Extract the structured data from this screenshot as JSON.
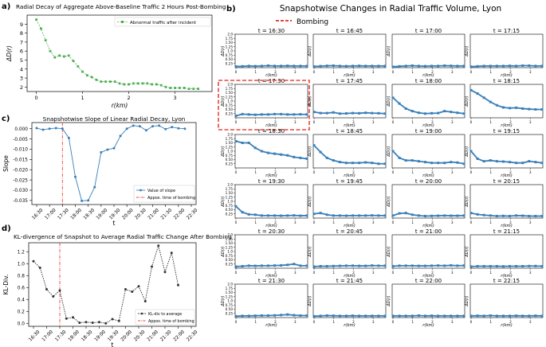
{
  "panels": {
    "a": {
      "letter": "a)",
      "title": "Radial Decay of Aggregate Above-Baseline Traffic 2 Hours Post-Bombing",
      "xlabel": "r(km)",
      "ylabel": "ΔD(r)",
      "legend": "Abnormal traffic after incident",
      "color": "#4caf50"
    },
    "b": {
      "letter": "b)",
      "title": "Snapshotwise Changes in Radial Traffic Volume, Lyon",
      "legend": "Bombing",
      "legend_color": "#e8453c",
      "color": "#3a7fb8",
      "xlabel": "r(km)",
      "ylabel": "ΔD(r)",
      "time_prefix": "t = ",
      "highlight_time": "17:30"
    },
    "c": {
      "letter": "c)",
      "title": "Snapshotwise Slope of Linear Radial Decay, Lyon",
      "xlabel": "t",
      "ylabel": "Slope",
      "legend_series": "Value of slope",
      "legend_bombing": "Appox. time of bombing",
      "color": "#3a7fb8",
      "bombing_color": "#e8453c"
    },
    "d": {
      "letter": "d)",
      "title": "KL-divergence of Snapshot to Average Radial Traffic Change After Bombing",
      "xlabel": "t",
      "ylabel": "KL-Div.",
      "legend_series": "KL-div to average",
      "legend_bombing": "Appox. time of bombing",
      "color": "#333333",
      "bombing_color": "#e8453c"
    }
  },
  "chart_data": [
    {
      "id": "a",
      "type": "line",
      "title": "Radial Decay of Aggregate Above-Baseline Traffic 2 Hours Post-Bombing",
      "xlabel": "r(km)",
      "ylabel": "ΔD(r)",
      "xlim": [
        -0.2,
        3.8
      ],
      "ylim": [
        1.5,
        10.0
      ],
      "xticks": [
        0,
        1,
        2,
        3
      ],
      "yticks": [
        2,
        3,
        4,
        5,
        6,
        7,
        8,
        9
      ],
      "series": [
        {
          "name": "Abnormal traffic after incident",
          "x": [
            0.0,
            0.1,
            0.2,
            0.3,
            0.4,
            0.5,
            0.6,
            0.7,
            0.8,
            0.9,
            1.0,
            1.1,
            1.2,
            1.3,
            1.4,
            1.5,
            1.6,
            1.7,
            1.8,
            1.9,
            2.0,
            2.1,
            2.2,
            2.3,
            2.4,
            2.5,
            2.6,
            2.7,
            2.8,
            2.9,
            3.0,
            3.1,
            3.2,
            3.3,
            3.4,
            3.5
          ],
          "y": [
            9.5,
            8.5,
            7.2,
            6.0,
            5.3,
            5.5,
            5.4,
            5.5,
            4.9,
            4.3,
            3.7,
            3.3,
            3.1,
            2.8,
            2.6,
            2.6,
            2.6,
            2.6,
            2.4,
            2.3,
            2.3,
            2.4,
            2.4,
            2.4,
            2.4,
            2.3,
            2.3,
            2.2,
            2.0,
            1.9,
            1.9,
            1.9,
            1.9,
            1.8,
            1.8,
            1.8
          ]
        }
      ]
    },
    {
      "id": "b",
      "type": "line",
      "title": "Snapshotwise Changes in Radial Traffic Volume, Lyon",
      "xlabel": "r(km)",
      "ylabel": "ΔD(r)",
      "ylim": [
        0,
        2.0
      ],
      "yticks": [
        0.25,
        0.5,
        0.75,
        1.0,
        1.25,
        1.5,
        1.75,
        2.0
      ],
      "xticks": [
        0,
        1,
        2,
        3
      ],
      "snapshots": [
        {
          "time": "16:30",
          "values": [
            0.07,
            0.08,
            0.1,
            0.09,
            0.1,
            0.12,
            0.1,
            0.1,
            0.11,
            0.1,
            0.1,
            0.1
          ]
        },
        {
          "time": "16:45",
          "values": [
            0.07,
            0.09,
            0.11,
            0.12,
            0.1,
            0.09,
            0.1,
            0.11,
            0.1,
            0.1,
            0.1,
            0.1
          ]
        },
        {
          "time": "17:00",
          "values": [
            0.05,
            0.08,
            0.1,
            0.12,
            0.1,
            0.09,
            0.1,
            0.1,
            0.12,
            0.11,
            0.1,
            0.1
          ]
        },
        {
          "time": "17:15",
          "values": [
            0.06,
            0.08,
            0.1,
            0.1,
            0.1,
            0.1,
            0.11,
            0.1,
            0.12,
            0.12,
            0.1,
            0.1
          ]
        },
        {
          "time": "17:30",
          "values": [
            0.12,
            0.22,
            0.2,
            0.18,
            0.2,
            0.2,
            0.22,
            0.22,
            0.2,
            0.2,
            0.21,
            0.2
          ]
        },
        {
          "time": "17:45",
          "values": [
            0.35,
            0.28,
            0.28,
            0.32,
            0.25,
            0.26,
            0.28,
            0.27,
            0.3,
            0.28,
            0.27,
            0.25
          ]
        },
        {
          "time": "18:00",
          "values": [
            1.2,
            0.85,
            0.55,
            0.4,
            0.3,
            0.25,
            0.27,
            0.28,
            0.4,
            0.35,
            0.3,
            0.25
          ]
        },
        {
          "time": "18:15",
          "values": [
            1.65,
            1.45,
            1.2,
            0.95,
            0.75,
            0.62,
            0.58,
            0.6,
            0.55,
            0.52,
            0.5,
            0.5
          ]
        },
        {
          "time": "18:30",
          "values": [
            1.6,
            1.5,
            1.5,
            1.2,
            1.0,
            0.9,
            0.85,
            0.8,
            0.75,
            0.65,
            0.6,
            0.55
          ]
        },
        {
          "time": "18:45",
          "values": [
            1.35,
            0.95,
            0.6,
            0.45,
            0.35,
            0.3,
            0.3,
            0.3,
            0.33,
            0.3,
            0.25,
            0.25
          ]
        },
        {
          "time": "19:00",
          "values": [
            1.0,
            0.6,
            0.45,
            0.45,
            0.4,
            0.35,
            0.3,
            0.3,
            0.3,
            0.35,
            0.32,
            0.25
          ]
        },
        {
          "time": "19:15",
          "values": [
            1.0,
            0.55,
            0.4,
            0.45,
            0.4,
            0.38,
            0.35,
            0.3,
            0.3,
            0.4,
            0.35,
            0.3
          ]
        },
        {
          "time": "19:30",
          "values": [
            0.7,
            0.35,
            0.22,
            0.2,
            0.15,
            0.15,
            0.15,
            0.14,
            0.15,
            0.16,
            0.14,
            0.15
          ]
        },
        {
          "time": "19:45",
          "values": [
            0.25,
            0.3,
            0.2,
            0.15,
            0.15,
            0.14,
            0.15,
            0.15,
            0.15,
            0.16,
            0.15,
            0.15
          ]
        },
        {
          "time": "20:00",
          "values": [
            0.15,
            0.28,
            0.3,
            0.2,
            0.15,
            0.12,
            0.13,
            0.14,
            0.15,
            0.14,
            0.14,
            0.15
          ]
        },
        {
          "time": "20:15",
          "values": [
            0.3,
            0.22,
            0.18,
            0.15,
            0.12,
            0.13,
            0.12,
            0.15,
            0.14,
            0.12,
            0.12,
            0.12
          ]
        },
        {
          "time": "20:30",
          "values": [
            0.1,
            0.12,
            0.15,
            0.14,
            0.15,
            0.15,
            0.16,
            0.17,
            0.2,
            0.25,
            0.15,
            0.15
          ]
        },
        {
          "time": "20:45",
          "values": [
            0.1,
            0.12,
            0.12,
            0.13,
            0.14,
            0.15,
            0.15,
            0.14,
            0.14,
            0.16,
            0.15,
            0.15
          ]
        },
        {
          "time": "21:00",
          "values": [
            0.12,
            0.15,
            0.15,
            0.15,
            0.14,
            0.14,
            0.15,
            0.16,
            0.15,
            0.17,
            0.15,
            0.16
          ]
        },
        {
          "time": "21:15",
          "values": [
            0.1,
            0.12,
            0.12,
            0.12,
            0.12,
            0.11,
            0.12,
            0.12,
            0.12,
            0.13,
            0.13,
            0.12
          ]
        },
        {
          "time": "21:30",
          "values": [
            0.08,
            0.1,
            0.1,
            0.11,
            0.12,
            0.12,
            0.13,
            0.15,
            0.18,
            0.14,
            0.12,
            0.12
          ]
        },
        {
          "time": "21:45",
          "values": [
            0.08,
            0.1,
            0.12,
            0.11,
            0.1,
            0.1,
            0.11,
            0.1,
            0.1,
            0.1,
            0.1,
            0.1
          ]
        },
        {
          "time": "22:00",
          "values": [
            0.1,
            0.1,
            0.1,
            0.1,
            0.12,
            0.1,
            0.11,
            0.1,
            0.1,
            0.1,
            0.1,
            0.1
          ]
        },
        {
          "time": "22:15",
          "values": [
            0.1,
            0.11,
            0.1,
            0.12,
            0.1,
            0.1,
            0.1,
            0.11,
            0.1,
            0.1,
            0.11,
            0.1
          ]
        }
      ]
    },
    {
      "id": "c",
      "type": "line",
      "title": "Snapshotwise Slope of Linear Radial Decay, Lyon",
      "xlabel": "t",
      "ylabel": "Slope",
      "ylim": [
        -0.037,
        0.003
      ],
      "yticks": [
        0.0,
        -0.005,
        -0.01,
        -0.015,
        -0.02,
        -0.025,
        -0.03,
        -0.035
      ],
      "ytick_labels": [
        "0.000",
        "-0.005",
        "-0.010",
        "-0.015",
        "-0.020",
        "-0.025",
        "-0.030",
        "-0.035"
      ],
      "xtick_labels": [
        "16:30",
        "17:00",
        "17:30",
        "18:00",
        "18:30",
        "19:00",
        "19:30",
        "20:00",
        "20:30",
        "21:00",
        "21:30",
        "22:00",
        "22:30"
      ],
      "bombing_index": 4,
      "series": [
        {
          "name": "Value of slope",
          "values": [
            0.0003,
            -0.0005,
            0.0,
            0.0003,
            0.0,
            -0.0045,
            -0.0235,
            -0.0352,
            -0.035,
            -0.0285,
            -0.0115,
            -0.0102,
            -0.0095,
            -0.0035,
            0.0,
            0.0015,
            0.0012,
            -0.0008,
            0.0012,
            0.0015,
            -0.0002,
            0.0008,
            0.0002,
            0.0
          ]
        }
      ]
    },
    {
      "id": "d",
      "type": "line",
      "title": "KL-divergence of Snapshot to Average Radial Traffic Change After Bombing",
      "xlabel": "t",
      "ylabel": "KL-Div.",
      "ylim": [
        -0.05,
        1.35
      ],
      "yticks": [
        0.0,
        0.2,
        0.4,
        0.6,
        0.8,
        1.0,
        1.2
      ],
      "ytick_labels": [
        "0.0",
        "0.2",
        "0.4",
        "0.6",
        "0.8",
        "1.0",
        "1.2"
      ],
      "xtick_labels": [
        "16:30",
        "17:00",
        "17:30",
        "18:00",
        "18:30",
        "19:00",
        "19:30",
        "20:00",
        "20:30",
        "21:00",
        "21:30",
        "22:00",
        "22:30"
      ],
      "bombing_index": 4,
      "series": [
        {
          "name": "KL-div to average",
          "values": [
            1.04,
            0.93,
            0.57,
            0.45,
            0.55,
            0.08,
            0.1,
            0.01,
            0.02,
            0.01,
            0.02,
            0.0,
            0.07,
            0.04,
            0.57,
            0.53,
            0.62,
            0.37,
            0.95,
            1.3,
            0.86,
            1.18,
            0.64
          ]
        }
      ]
    }
  ]
}
